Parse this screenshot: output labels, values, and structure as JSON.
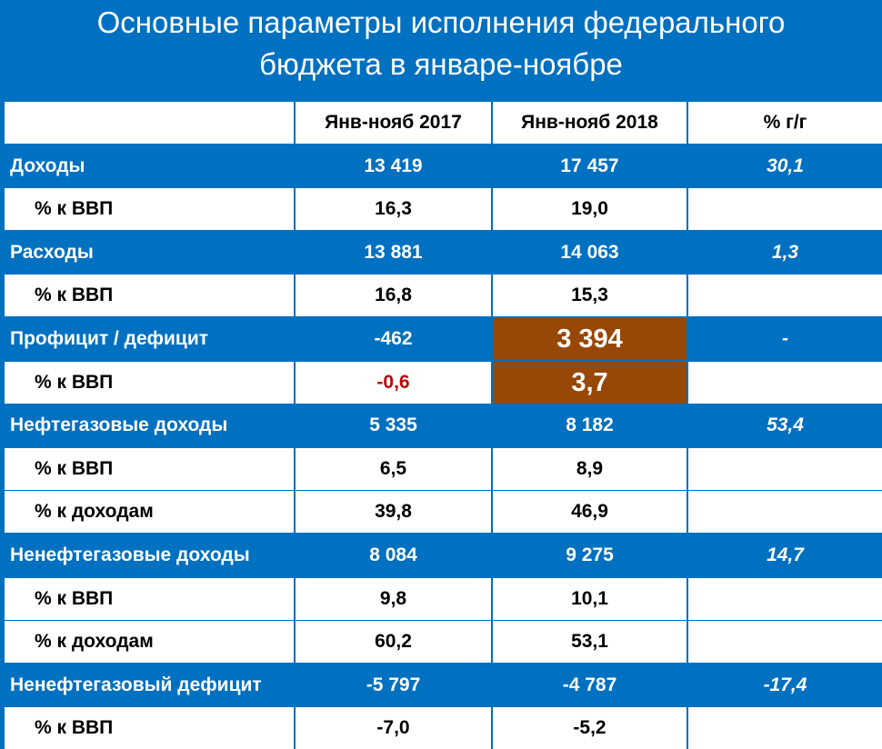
{
  "title_lines": [
    "Основные параметры исполнения федерального",
    "бюджета в январе-ноябре"
  ],
  "chart_data": {
    "type": "table",
    "columns": [
      "",
      "Янв-нояб 2017",
      "Янв-нояб 2018",
      "% г/г"
    ],
    "rows": [
      {
        "label": "Доходы",
        "v2017": "13 419",
        "v2018": "17 457",
        "yoy": "30,1",
        "level": "main"
      },
      {
        "label": "% к ВВП",
        "v2017": "16,3",
        "v2018": "19,0",
        "yoy": "",
        "level": "sub"
      },
      {
        "label": "Расходы",
        "v2017": "13 881",
        "v2018": "14 063",
        "yoy": "1,3",
        "level": "main"
      },
      {
        "label": "% к ВВП",
        "v2017": "16,8",
        "v2018": "15,3",
        "yoy": "",
        "level": "sub"
      },
      {
        "label": "Профицит / дефицит",
        "v2017": "-462",
        "v2018": "3 394",
        "yoy": "-",
        "level": "main"
      },
      {
        "label": "% к ВВП",
        "v2017": "-0,6",
        "v2018": "3,7",
        "yoy": "",
        "level": "sub"
      },
      {
        "label": "Нефтегазовые доходы",
        "v2017": "5 335",
        "v2018": "8 182",
        "yoy": "53,4",
        "level": "main"
      },
      {
        "label": "% к ВВП",
        "v2017": "6,5",
        "v2018": "8,9",
        "yoy": "",
        "level": "sub"
      },
      {
        "label": "% к доходам",
        "v2017": "39,8",
        "v2018": "46,9",
        "yoy": "",
        "level": "sub"
      },
      {
        "label": "Ненефтегазовые доходы",
        "v2017": "8 084",
        "v2018": "9 275",
        "yoy": "14,7",
        "level": "main"
      },
      {
        "label": "% к ВВП",
        "v2017": "9,8",
        "v2018": "10,1",
        "yoy": "",
        "level": "sub"
      },
      {
        "label": "% к доходам",
        "v2017": "60,2",
        "v2018": "53,1",
        "yoy": "",
        "level": "sub"
      },
      {
        "label": "Ненефтегазовый дефицит",
        "v2017": "-5 797",
        "v2018": "-4 787",
        "yoy": "-17,4",
        "level": "main"
      },
      {
        "label": "% к ВВП",
        "v2017": "-7,0",
        "v2018": "-5,2",
        "yoy": "",
        "level": "sub"
      }
    ],
    "highlight_color": "#974706",
    "header_color": "#0070c0",
    "negative_color": "#c00000"
  }
}
